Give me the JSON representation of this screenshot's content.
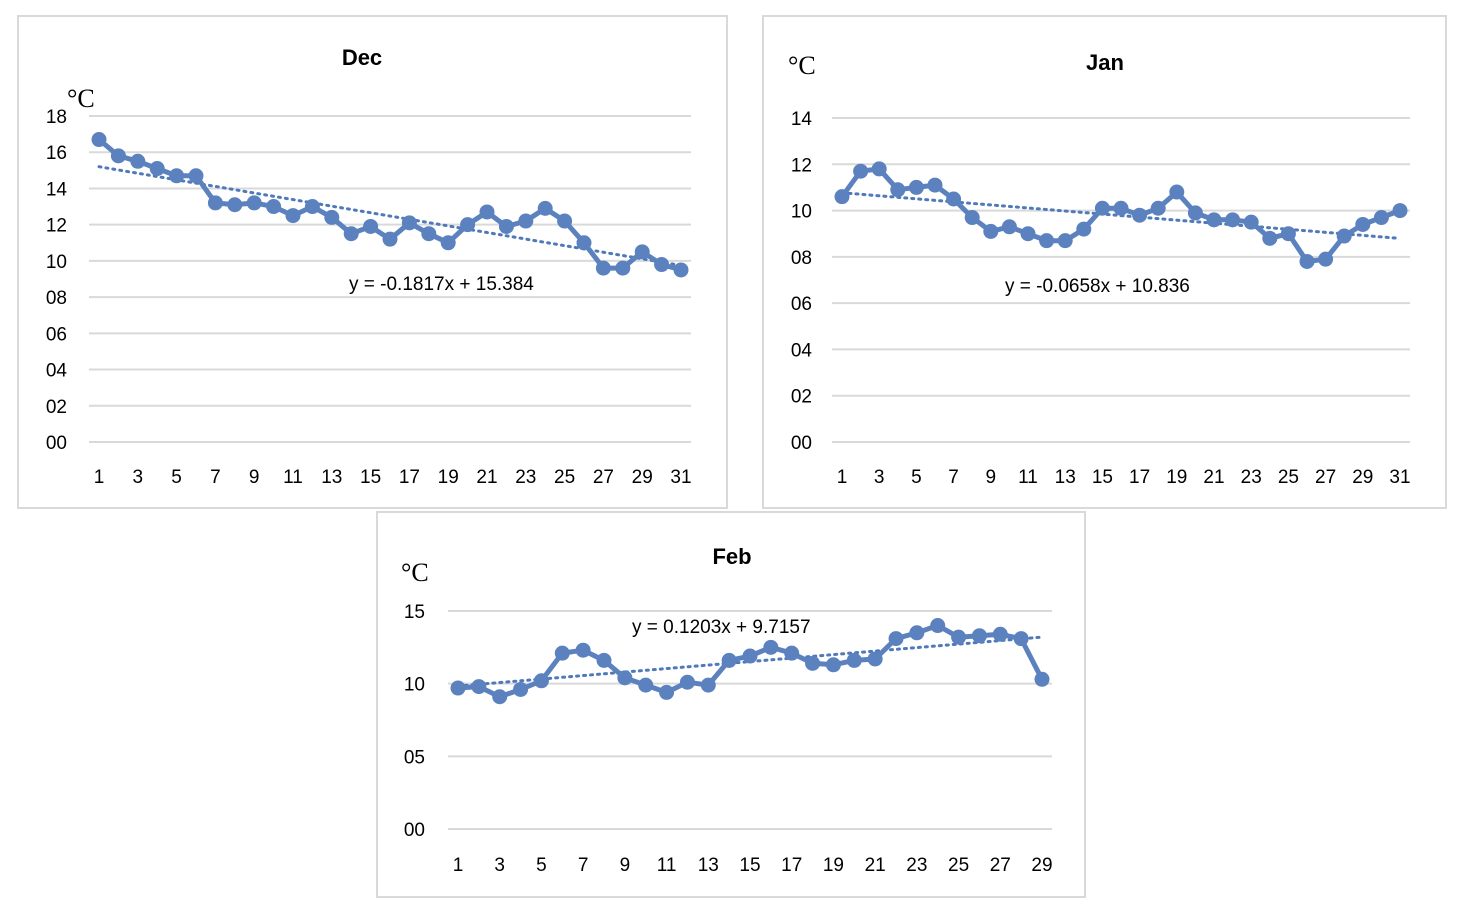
{
  "colors": {
    "series": "#5b82bf",
    "trend": "#4f79b8",
    "grid": "#d9d9d9",
    "border": "#d9d9d9"
  },
  "chart_data": [
    {
      "type": "line",
      "title": "Dec",
      "ylabel": "°C",
      "ylim": [
        0,
        18
      ],
      "y_ticks": [
        "00",
        "02",
        "04",
        "06",
        "08",
        "10",
        "12",
        "14",
        "16",
        "18"
      ],
      "x_ticks": [
        "1",
        "3",
        "5",
        "7",
        "9",
        "11",
        "13",
        "15",
        "17",
        "19",
        "21",
        "23",
        "25",
        "27",
        "29",
        "31"
      ],
      "x": [
        1,
        2,
        3,
        4,
        5,
        6,
        7,
        8,
        9,
        10,
        11,
        12,
        13,
        14,
        15,
        16,
        17,
        18,
        19,
        20,
        21,
        22,
        23,
        24,
        25,
        26,
        27,
        28,
        29,
        30,
        31
      ],
      "values": [
        16.7,
        15.8,
        15.5,
        15.1,
        14.7,
        14.7,
        13.2,
        13.1,
        13.2,
        13.0,
        12.5,
        13.0,
        12.4,
        11.5,
        11.9,
        11.2,
        12.1,
        11.5,
        11.0,
        12.0,
        12.7,
        11.9,
        12.2,
        12.9,
        12.2,
        11.0,
        9.6,
        9.6,
        10.5,
        9.8,
        9.5
      ],
      "trendline": {
        "slope": -0.1817,
        "intercept": 15.384,
        "label": "y = -0.1817x + 15.384"
      }
    },
    {
      "type": "line",
      "title": "Jan",
      "ylabel": "°C",
      "ylim": [
        0,
        14
      ],
      "y_ticks": [
        "00",
        "02",
        "04",
        "06",
        "08",
        "10",
        "12",
        "14"
      ],
      "x_ticks": [
        "1",
        "3",
        "5",
        "7",
        "9",
        "11",
        "13",
        "15",
        "17",
        "19",
        "21",
        "23",
        "25",
        "27",
        "29",
        "31"
      ],
      "x": [
        1,
        2,
        3,
        4,
        5,
        6,
        7,
        8,
        9,
        10,
        11,
        12,
        13,
        14,
        15,
        16,
        17,
        18,
        19,
        20,
        21,
        22,
        23,
        24,
        25,
        26,
        27,
        28,
        29,
        30,
        31
      ],
      "values": [
        10.6,
        11.7,
        11.8,
        10.9,
        11.0,
        11.1,
        10.5,
        9.7,
        9.1,
        9.3,
        9.0,
        8.7,
        8.7,
        9.2,
        10.1,
        10.1,
        9.8,
        10.1,
        10.8,
        9.9,
        9.6,
        9.6,
        9.5,
        8.8,
        9.0,
        7.8,
        7.9,
        8.9,
        9.4,
        9.7,
        10.0
      ],
      "trendline": {
        "slope": -0.0658,
        "intercept": 10.836,
        "label": "y = -0.0658x + 10.836"
      }
    },
    {
      "type": "line",
      "title": "Feb",
      "ylabel": "°C",
      "ylim": [
        0,
        15
      ],
      "y_ticks": [
        "00",
        "05",
        "10",
        "15"
      ],
      "x_ticks": [
        "1",
        "3",
        "5",
        "7",
        "9",
        "11",
        "13",
        "15",
        "17",
        "19",
        "21",
        "23",
        "25",
        "27",
        "29"
      ],
      "x": [
        1,
        2,
        3,
        4,
        5,
        6,
        7,
        8,
        9,
        10,
        11,
        12,
        13,
        14,
        15,
        16,
        17,
        18,
        19,
        20,
        21,
        22,
        23,
        24,
        25,
        26,
        27,
        28,
        29
      ],
      "values": [
        9.7,
        9.8,
        9.1,
        9.6,
        10.2,
        12.1,
        12.3,
        11.6,
        10.4,
        9.9,
        9.4,
        10.1,
        9.9,
        11.6,
        11.9,
        12.5,
        12.1,
        11.4,
        11.3,
        11.6,
        11.7,
        13.1,
        13.5,
        14.0,
        13.2,
        13.3,
        13.4,
        13.1,
        10.3
      ],
      "trendline": {
        "slope": 0.1203,
        "intercept": 9.7157,
        "label": "y = 0.1203x + 9.7157"
      }
    }
  ]
}
